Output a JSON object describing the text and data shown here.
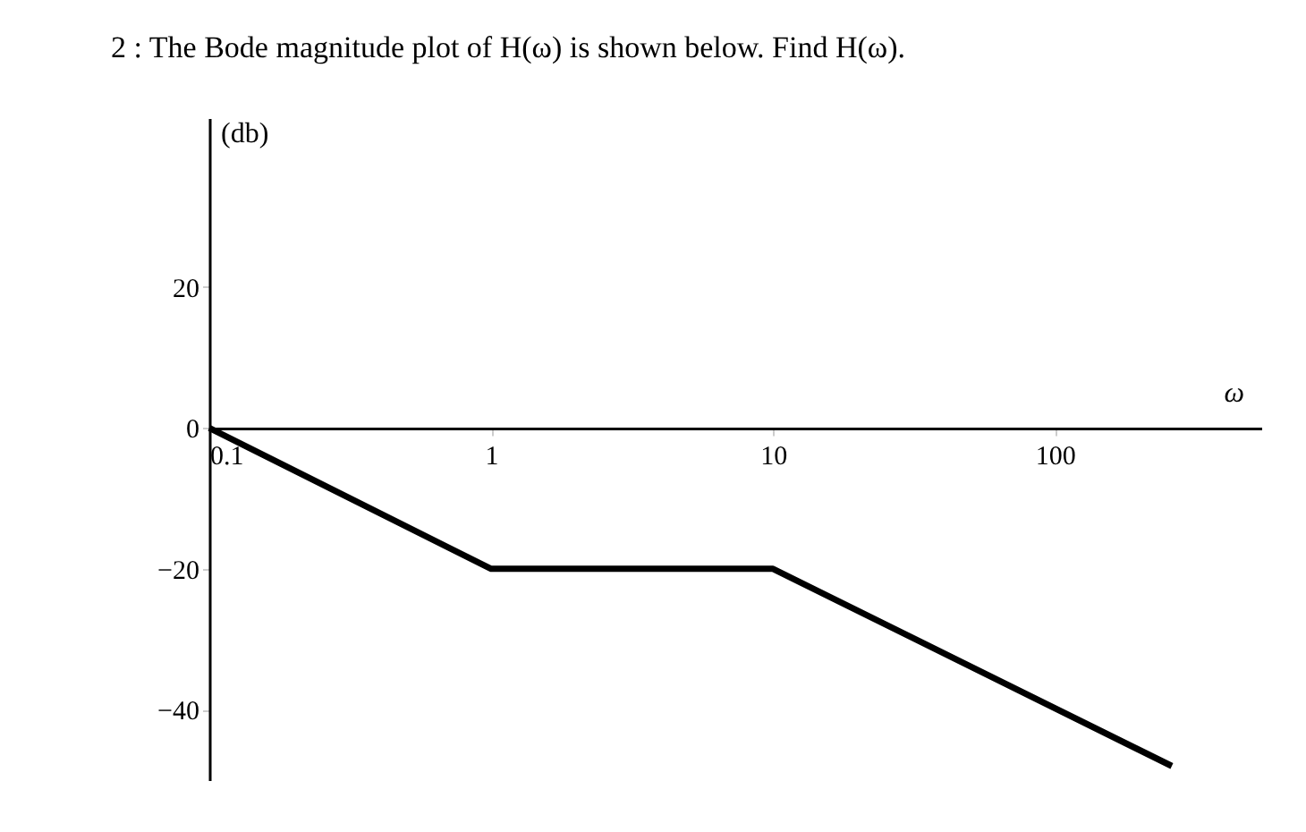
{
  "chart_data": {
    "type": "line",
    "title": "2 : The Bode magnitude plot of H(ω) is shown below. Find H(ω).",
    "xlabel": "ω",
    "ylabel": "(db)",
    "x": [
      0.1,
      1,
      10,
      260
    ],
    "values": [
      0,
      -20,
      -20,
      -48
    ],
    "color": "#000000",
    "xlim": [
      0.1,
      540
    ],
    "ylim": [
      -50,
      44
    ],
    "xticks": [
      0.1,
      1,
      10,
      100
    ],
    "yticks": [
      -40,
      -20,
      0,
      20
    ],
    "log": "x",
    "grid": false
  }
}
